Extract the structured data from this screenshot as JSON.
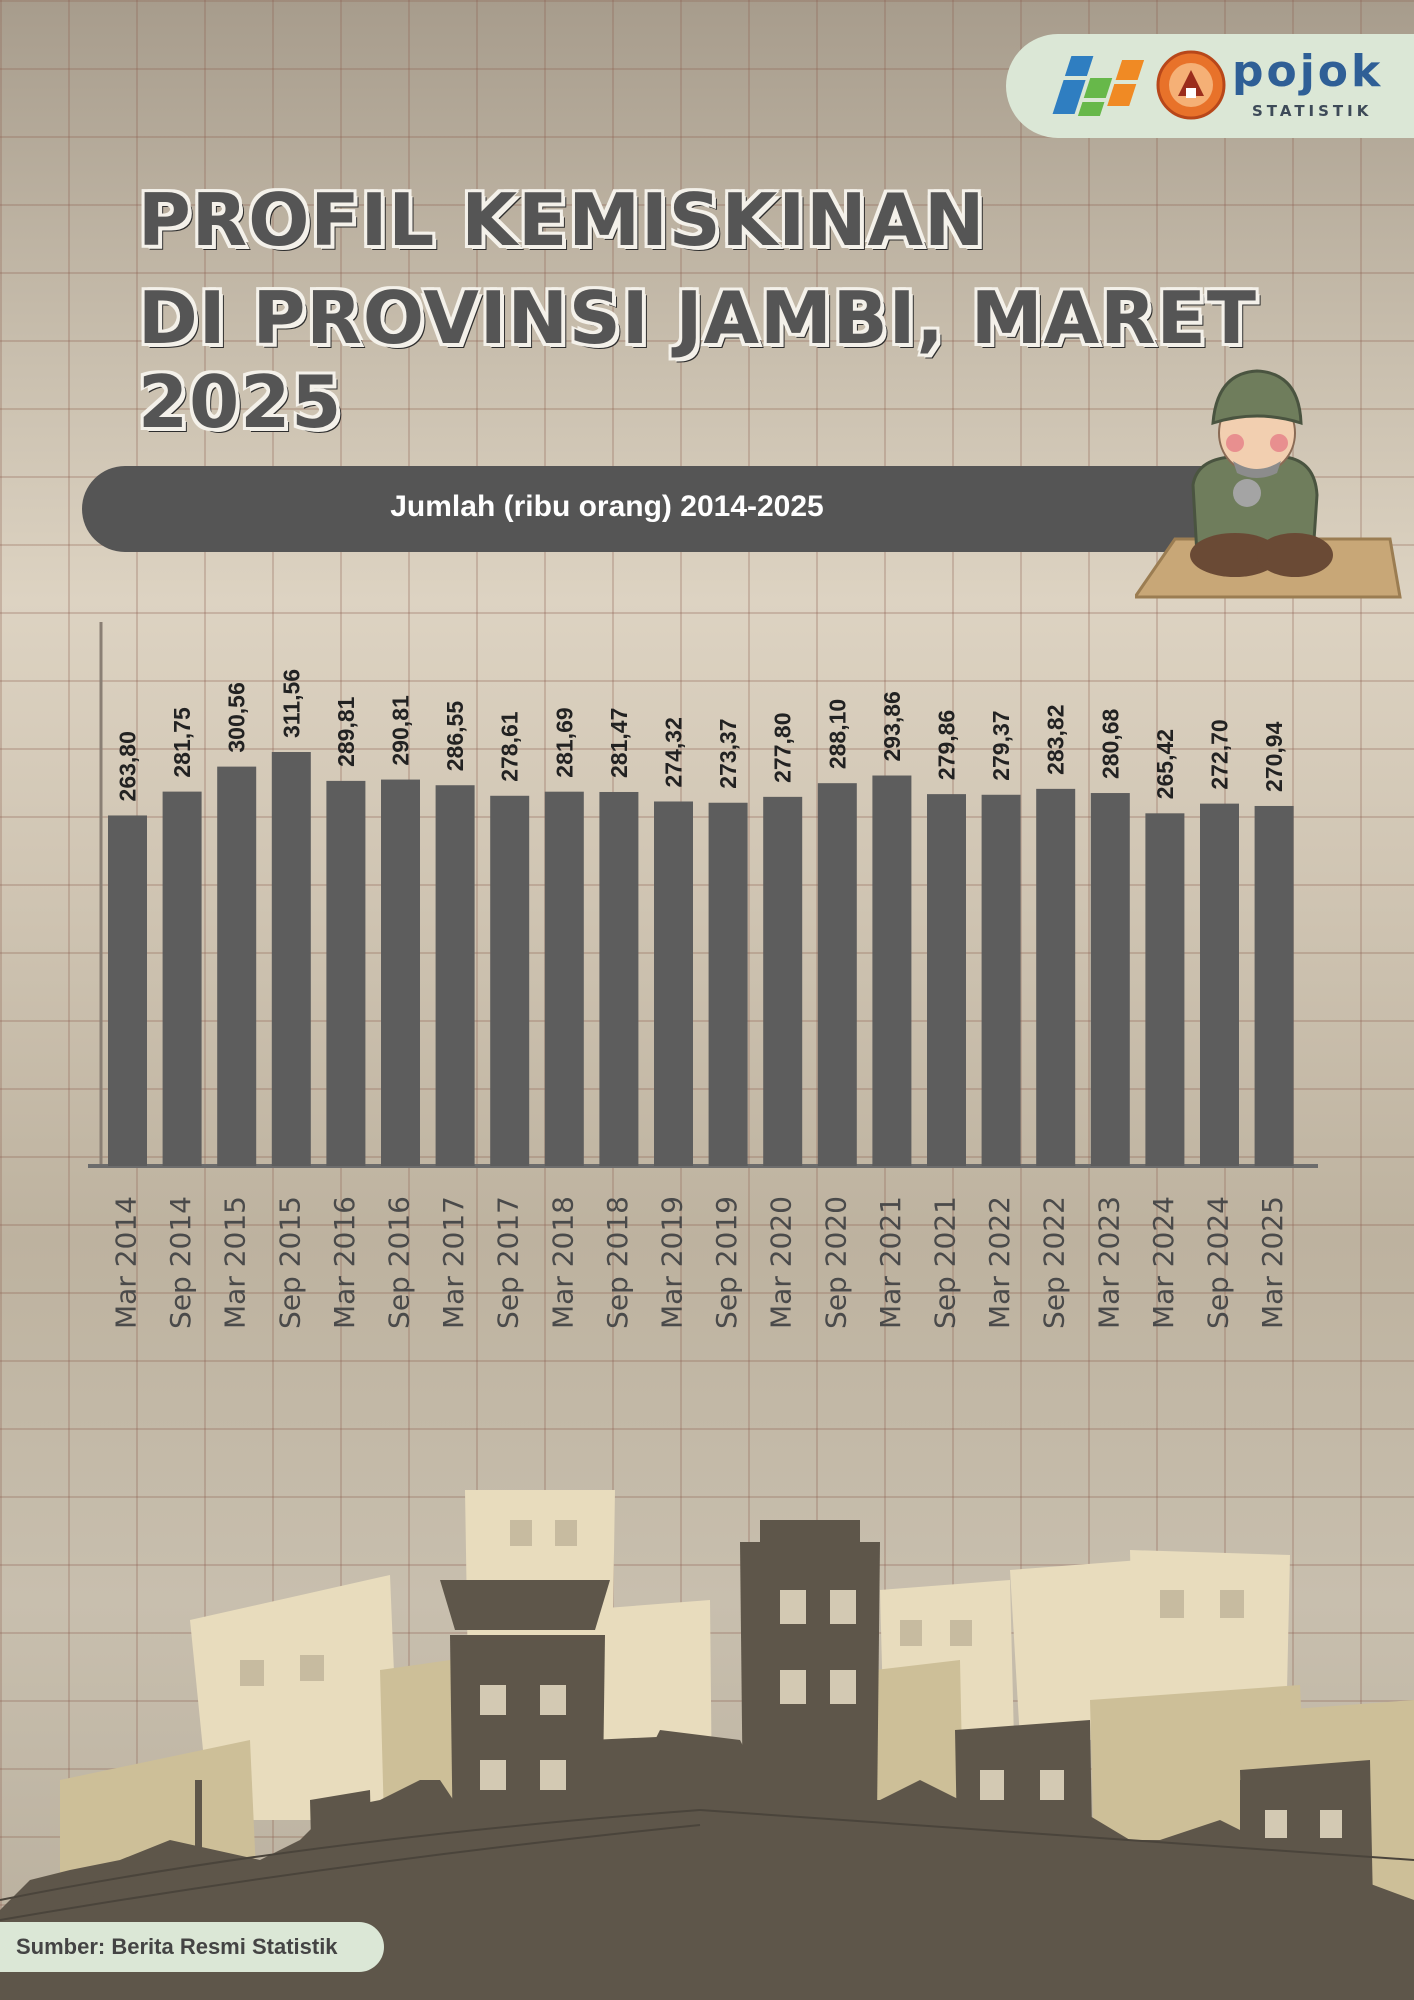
{
  "header": {
    "logo_name": "pojok",
    "logo_sub": "STATISTIK",
    "title_line1": "PROFIL KEMISKINAN",
    "title_line2": "DI PROVINSI JAMBI, MARET 2025"
  },
  "subtitle": "Jumlah (ribu orang) 2014-2025",
  "colors": {
    "bar": "#5d5d5d",
    "title": "#555555",
    "subtitle_bar": "#555555",
    "badge": "#dbe7d6"
  },
  "chart_data": {
    "type": "bar",
    "title": "Jumlah (ribu orang) 2014-2025",
    "xlabel": "",
    "ylabel": "",
    "categories": [
      "Mar 2014",
      "Sep 2014",
      "Mar 2015",
      "Sep 2015",
      "Mar 2016",
      "Sep 2016",
      "Mar 2017",
      "Sep 2017",
      "Mar 2018",
      "Sep 2018",
      "Mar 2019",
      "Sep 2019",
      "Mar 2020",
      "Sep 2020",
      "Mar 2021",
      "Sep 2021",
      "Mar 2022",
      "Sep 2022",
      "Mar 2023",
      "Mar 2024",
      "Sep 2024",
      "Mar 2025"
    ],
    "values": [
      263.8,
      281.75,
      300.56,
      311.56,
      289.81,
      290.81,
      286.55,
      278.61,
      281.69,
      281.47,
      274.32,
      273.37,
      277.8,
      288.1,
      293.86,
      279.86,
      279.37,
      283.82,
      280.68,
      265.42,
      272.7,
      270.94
    ],
    "value_labels": [
      "263,80",
      "281,75",
      "300,56",
      "311,56",
      "289,81",
      "290,81",
      "286,55",
      "278,61",
      "281,69",
      "281,47",
      "274,32",
      "273,37",
      "277,80",
      "288,10",
      "293,86",
      "279,86",
      "279,37",
      "283,82",
      "280,68",
      "265,42",
      "272,70",
      "270,94"
    ],
    "ylim": [
      0,
      311.56
    ],
    "grid": false,
    "legend": "none"
  },
  "footer": {
    "source": "Sumber: Berita Resmi Statistik"
  }
}
